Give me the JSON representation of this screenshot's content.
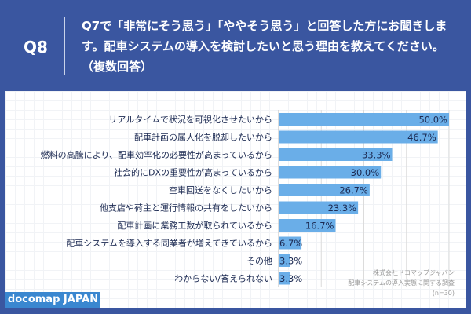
{
  "header": {
    "q": "Q8",
    "title": "Q7で「非常にそう思う」「ややそう思う」と回答した方にお聞きします。配車システムの導入を検討したいと思う理由を教えてください。（複数回答）"
  },
  "note": {
    "l1": "株式会社ドコマップジャパン",
    "l2": "配車システムの導入実態に関する調査",
    "l3": "(n=30)"
  },
  "logo": "docomap JAPAN",
  "colors": {
    "bar": "#6aaee8",
    "bg": "#3a56a0"
  },
  "chart_data": {
    "type": "bar",
    "orientation": "horizontal",
    "title": "",
    "xlabel": "",
    "ylabel": "",
    "xlim": [
      0,
      50
    ],
    "categories": [
      "リアルタイムで状況を可視化させたいから",
      "配車計画の属人化を脱却したいから",
      "燃料の高騰により、配車効率化の必要性が高まっているから",
      "社会的にDXの重要性が高まっているから",
      "空車回送をなくしたいから",
      "他支店や荷主と運行情報の共有をしたいから",
      "配車計画に業務工数が取られているから",
      "配車システムを導入する同業者が増えてきているから",
      "その他",
      "わからない/答えられない"
    ],
    "values": [
      50.0,
      46.7,
      33.3,
      30.0,
      26.7,
      23.3,
      16.7,
      6.7,
      3.3,
      3.3
    ],
    "value_labels": [
      "50.0%",
      "46.7%",
      "33.3%",
      "30.0%",
      "26.7%",
      "23.3%",
      "16.7%",
      "6.7%",
      "3.3%",
      "3.3%"
    ]
  }
}
